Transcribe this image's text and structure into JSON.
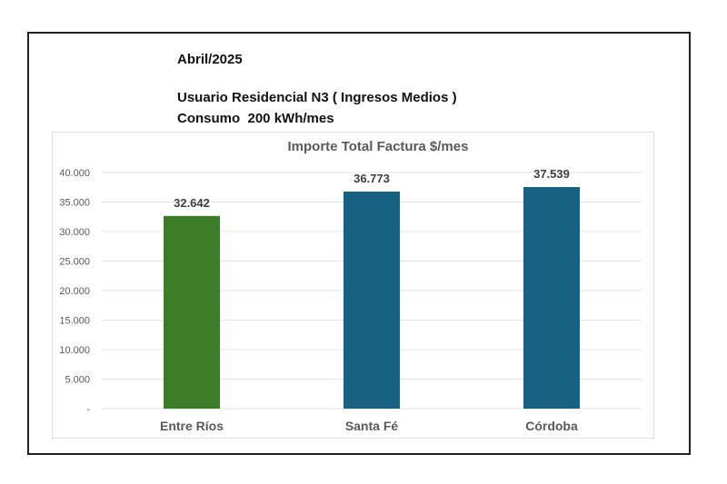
{
  "header": {
    "period": "Abril/2025",
    "user_type": "Usuario Residencial N3 ( Ingresos Medios )",
    "consumption": "Consumo  200 kWh/mes"
  },
  "chart_data": {
    "type": "bar",
    "title": "Importe Total  Factura $/mes",
    "categories": [
      "Entre Ríos",
      "Santa Fé",
      "Córdoba"
    ],
    "values": [
      32642,
      36773,
      37539
    ],
    "value_labels": [
      "32.642",
      "36.773",
      "37.539"
    ],
    "colors": [
      "#3e7d27",
      "#176283",
      "#176283"
    ],
    "xlabel": "",
    "ylabel": "",
    "ylim": [
      0,
      40000
    ],
    "yticks": [
      0,
      5000,
      10000,
      15000,
      20000,
      25000,
      30000,
      35000,
      40000
    ],
    "ytick_labels": [
      "-",
      "5.000",
      "10.000",
      "15.000",
      "20.000",
      "25.000",
      "30.000",
      "35.000",
      "40.000"
    ],
    "grid": true,
    "legend": "none"
  }
}
